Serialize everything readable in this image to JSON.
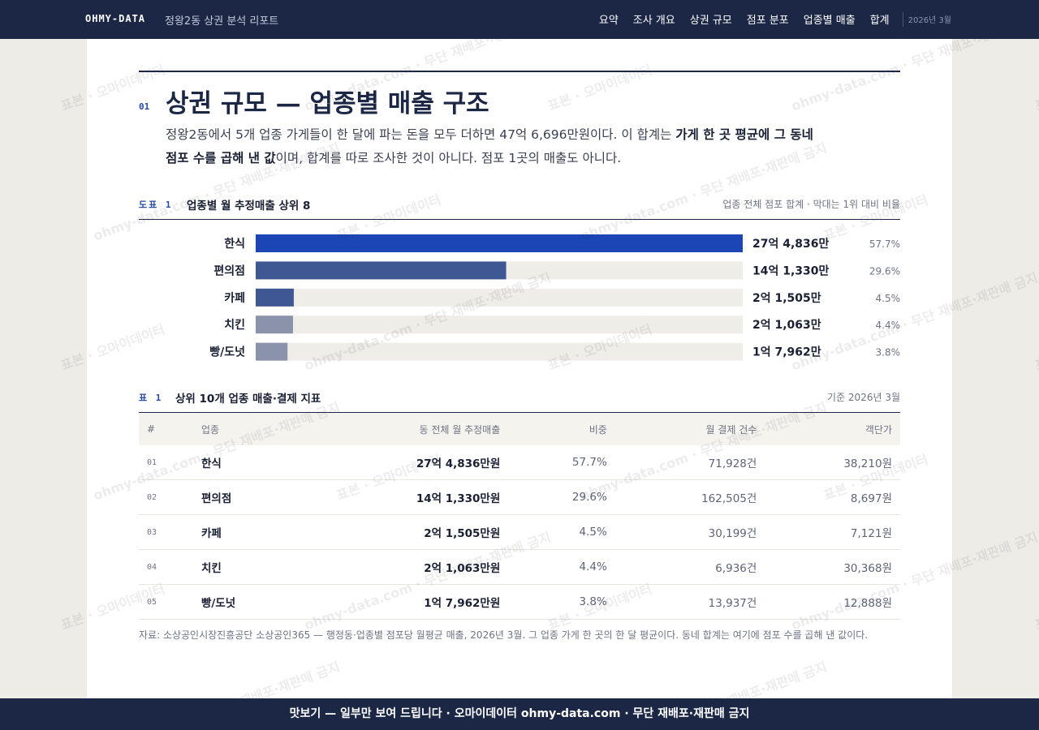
{
  "header": {
    "brand": "OHMY-DATA",
    "subtitle": "정왕2동 상권 분석 리포트",
    "nav": [
      "요약",
      "조사 개요",
      "상권 규모",
      "점포 분포",
      "업종별 매출",
      "합계"
    ],
    "date": "2026년 3월"
  },
  "section": {
    "number": "01",
    "title": "상권 규모 — 업종별 매출 구조",
    "lead_before": "정왕2동에서 5개 업종 가게들이 한 달에 파는 돈을 모두 더하면 47억 6,696만원이다. 이 합계는 ",
    "lead_strong": "가게 한 곳 평균에 그 동네 점포 수를 곱해 낸 값",
    "lead_after": "이며, 합계를 따로 조사한 것이 아니다. 점포 1곳의 매출도 아니다."
  },
  "figure": {
    "label": "도표 1",
    "title": "업종별 월 추정매출 상위 8",
    "note": "업종 전체 점포 합계 · 막대는 1위 대비 비율"
  },
  "chart_data": {
    "type": "bar",
    "orientation": "horizontal",
    "categories": [
      "한식",
      "편의점",
      "카페",
      "치킨",
      "빵/도넛"
    ],
    "values": [
      274836,
      141330,
      21505,
      21063,
      17962
    ],
    "value_labels": [
      "27억 4,836만",
      "14억 1,330만",
      "2억 1,505만",
      "2억 1,063만",
      "1억 7,962만"
    ],
    "share_labels": [
      "57.7%",
      "29.6%",
      "4.5%",
      "4.4%",
      "3.8%"
    ],
    "colors": [
      "#1c46b6",
      "#3f5893",
      "#3f5893",
      "#8a93aa",
      "#8a93aa"
    ],
    "track_color": "#efede7",
    "xlim": [
      0,
      274836
    ]
  },
  "table": {
    "label": "표 1",
    "title": "상위 10개 업종 매출·결제 지표",
    "note": "기준 2026년 3월",
    "columns": [
      "#",
      "업종",
      "동 전체 월 추정매출",
      "비중",
      "월 결제 건수",
      "객단가"
    ],
    "rows": [
      [
        "01",
        "한식",
        "27억 4,836만원",
        "57.7%",
        "71,928건",
        "38,210원"
      ],
      [
        "02",
        "편의점",
        "14억 1,330만원",
        "29.6%",
        "162,505건",
        "8,697원"
      ],
      [
        "03",
        "카페",
        "2억 1,505만원",
        "4.5%",
        "30,199건",
        "7,121원"
      ],
      [
        "04",
        "치킨",
        "2억 1,063만원",
        "4.4%",
        "6,936건",
        "30,368원"
      ],
      [
        "05",
        "빵/도넛",
        "1억 7,962만원",
        "3.8%",
        "13,937건",
        "12,888원"
      ]
    ]
  },
  "source": "자료: 소상공인시장진흥공단 소상공인365 — 행정동·업종별 점포당 월평균 매출, 2026년 3월. 그 업종 가게 한 곳의 한 달 평균이다. 동네 합계는 여기에 점포 수를 곱해 낸 값이다.",
  "footer": "맛보기 — 일부만 보여 드립니다 · 오마이데이터 ohmy-data.com · 무단 재배포·재판매 금지",
  "watermarks": [
    "표본 · 오마이데이터",
    "ohmy-data.com · 무단 재배포·재판매 금지"
  ]
}
